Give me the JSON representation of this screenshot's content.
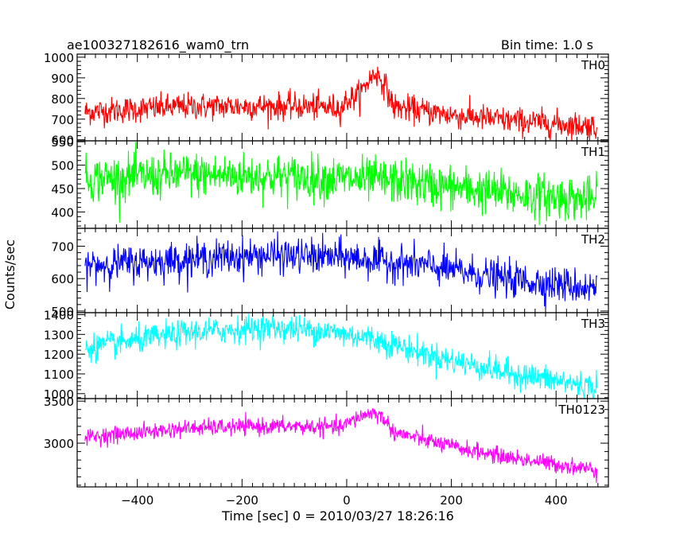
{
  "header": {
    "title": "ae100327182616_wam0_trn",
    "bin_time": "Bin time: 1.0 s"
  },
  "chart_data": {
    "type": "line",
    "ylabel": "Counts/sec",
    "xlabel": "Time [sec] 0 = 2010/03/27 18:26:16",
    "xlim": [
      -515,
      500
    ],
    "x_ticks": [
      -400,
      -200,
      0,
      200,
      400
    ],
    "x_tick_labels": [
      "−400",
      "−200",
      "0",
      "200",
      "400"
    ],
    "x_range": [
      -500,
      478
    ],
    "grid": false,
    "panels": [
      {
        "name": "TH0",
        "color": "#ff0000",
        "ylim": [
          595,
          1015
        ],
        "y_ticks": [
          600,
          700,
          800,
          900,
          1000
        ],
        "y_tick_labels": [
          "600",
          "700",
          "800",
          "900",
          "1000"
        ],
        "trend": [
          [
            -500,
            735
          ],
          [
            -300,
            762
          ],
          [
            -100,
            762
          ],
          [
            -10,
            755
          ],
          [
            0,
            790
          ],
          [
            25,
            820
          ],
          [
            40,
            880
          ],
          [
            55,
            925
          ],
          [
            70,
            880
          ],
          [
            90,
            760
          ],
          [
            200,
            720
          ],
          [
            300,
            695
          ],
          [
            478,
            665
          ]
        ],
        "noise": 38
      },
      {
        "name": "TH1",
        "color": "#00ff00",
        "ylim": [
          365,
          552
        ],
        "y_ticks": [
          400,
          450,
          500,
          550
        ],
        "y_tick_labels": [
          "400",
          "450",
          "500",
          "550"
        ],
        "trend": [
          [
            -500,
            470
          ],
          [
            -300,
            480
          ],
          [
            -100,
            475
          ],
          [
            100,
            465
          ],
          [
            300,
            440
          ],
          [
            478,
            425
          ]
        ],
        "noise": 28
      },
      {
        "name": "TH2",
        "color": "#0000ff",
        "ylim": [
          495,
          755
        ],
        "y_ticks": [
          500,
          600,
          700
        ],
        "y_tick_labels": [
          "500",
          "600",
          "700"
        ],
        "trend": [
          [
            -500,
            640
          ],
          [
            -300,
            660
          ],
          [
            -150,
            672
          ],
          [
            0,
            665
          ],
          [
            150,
            640
          ],
          [
            300,
            600
          ],
          [
            478,
            570
          ]
        ],
        "noise": 32
      },
      {
        "name": "TH3",
        "color": "#00ffff",
        "ylim": [
          975,
          1410
        ],
        "y_ticks": [
          1000,
          1100,
          1200,
          1300,
          1400
        ],
        "y_tick_labels": [
          "1000",
          "1100",
          "1200",
          "1300",
          "1400"
        ],
        "trend": [
          [
            -500,
            1230
          ],
          [
            -300,
            1310
          ],
          [
            -150,
            1335
          ],
          [
            -50,
            1320
          ],
          [
            50,
            1280
          ],
          [
            150,
            1200
          ],
          [
            300,
            1110
          ],
          [
            478,
            1030
          ]
        ],
        "noise": 40
      },
      {
        "name": "TH0123",
        "color": "#ff00ff",
        "ylim": [
          2480,
          3530
        ],
        "y_ticks": [
          3000,
          3500
        ],
        "y_tick_labels": [
          "3000",
          "3500"
        ],
        "trend": [
          [
            -500,
            3070
          ],
          [
            -300,
            3180
          ],
          [
            -150,
            3200
          ],
          [
            -10,
            3190
          ],
          [
            20,
            3300
          ],
          [
            50,
            3370
          ],
          [
            70,
            3300
          ],
          [
            90,
            3130
          ],
          [
            200,
            2960
          ],
          [
            300,
            2840
          ],
          [
            478,
            2680
          ]
        ],
        "noise": 58
      }
    ]
  }
}
